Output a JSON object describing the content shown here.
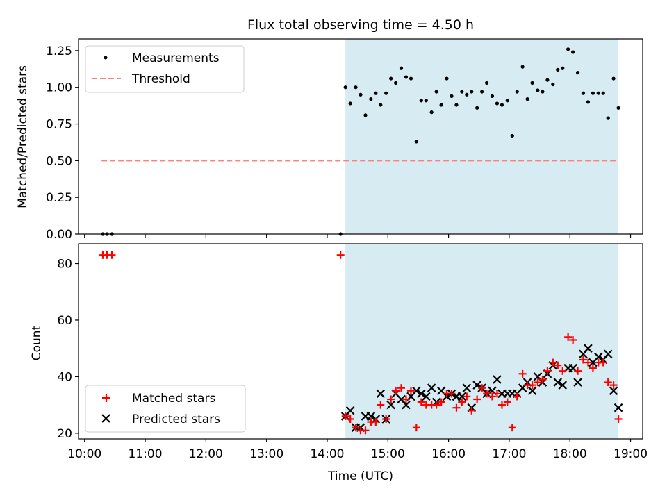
{
  "chart_data": [
    {
      "type": "scatter",
      "title": "Flux total observing time = 4.50 h",
      "ylabel": "Matched/Predicted stars",
      "ylim": [
        0,
        1.33
      ],
      "yticks": [
        "0.00",
        "0.25",
        "0.50",
        "0.75",
        "1.00",
        "1.25"
      ],
      "ytick_values": [
        0,
        0.25,
        0.5,
        0.75,
        1.0,
        1.25
      ],
      "shaded_region": {
        "x_start": 14.3,
        "x_end": 18.8,
        "color": "#add8e6"
      },
      "legend": {
        "placement": "top-left",
        "entries": [
          "Measurements",
          "Threshold"
        ]
      },
      "series": [
        {
          "name": "Measurements",
          "marker": "dot",
          "color": "#000000",
          "x": [
            10.3,
            10.37,
            10.45,
            14.22,
            14.3,
            14.38,
            14.47,
            14.55,
            14.63,
            14.72,
            14.8,
            14.88,
            14.97,
            15.05,
            15.13,
            15.22,
            15.3,
            15.38,
            15.47,
            15.55,
            15.63,
            15.72,
            15.8,
            15.88,
            15.97,
            16.05,
            16.13,
            16.22,
            16.3,
            16.38,
            16.47,
            16.55,
            16.63,
            16.72,
            16.8,
            16.88,
            16.97,
            17.05,
            17.13,
            17.22,
            17.3,
            17.38,
            17.47,
            17.55,
            17.63,
            17.72,
            17.8,
            17.88,
            17.97,
            18.05,
            18.13,
            18.22,
            18.3,
            18.38,
            18.47,
            18.55,
            18.63,
            18.72,
            18.8
          ],
          "y": [
            0,
            0,
            0,
            0,
            1.0,
            0.89,
            1.0,
            0.95,
            0.81,
            0.92,
            0.96,
            0.88,
            0.96,
            1.06,
            1.03,
            1.13,
            1.07,
            1.06,
            0.63,
            0.91,
            0.91,
            0.83,
            0.97,
            0.88,
            1.06,
            0.94,
            0.88,
            0.97,
            0.95,
            0.97,
            0.86,
            0.97,
            1.03,
            0.94,
            0.89,
            0.88,
            0.91,
            0.67,
            0.97,
            1.14,
            0.92,
            1.03,
            0.98,
            0.97,
            1.05,
            1.02,
            1.12,
            1.13,
            1.26,
            1.24,
            1.1,
            0.96,
            0.9,
            0.96,
            0.96,
            0.96,
            0.79,
            1.06,
            0.86
          ]
        },
        {
          "name": "Threshold",
          "style": "dashed",
          "color": "#ff7f7f",
          "x": [
            10.28,
            18.8
          ],
          "y": [
            0.5,
            0.5
          ]
        }
      ]
    },
    {
      "type": "scatter",
      "ylabel": "Count",
      "xlabel": "Time (UTC)",
      "ylim": [
        18,
        87
      ],
      "yticks": [
        "20",
        "40",
        "60",
        "80"
      ],
      "ytick_values": [
        20,
        40,
        60,
        80
      ],
      "xlim": [
        9.9,
        19.2
      ],
      "xticks": [
        "10:00",
        "11:00",
        "12:00",
        "13:00",
        "14:00",
        "15:00",
        "16:00",
        "17:00",
        "18:00",
        "19:00"
      ],
      "xtick_values": [
        10,
        11,
        12,
        13,
        14,
        15,
        16,
        17,
        18,
        19
      ],
      "shaded_region": {
        "x_start": 14.3,
        "x_end": 18.8,
        "color": "#add8e6"
      },
      "legend": {
        "placement": "bottom-left",
        "entries": [
          "Matched stars",
          "Predicted stars"
        ]
      },
      "series": [
        {
          "name": "Matched stars",
          "marker": "plus",
          "color": "#ff0000",
          "x": [
            10.3,
            10.37,
            10.45,
            14.22,
            14.3,
            14.38,
            14.47,
            14.55,
            14.63,
            14.72,
            14.8,
            14.88,
            14.97,
            15.05,
            15.13,
            15.22,
            15.3,
            15.38,
            15.47,
            15.55,
            15.63,
            15.72,
            15.8,
            15.88,
            15.97,
            16.05,
            16.13,
            16.22,
            16.3,
            16.38,
            16.47,
            16.55,
            16.63,
            16.72,
            16.8,
            16.88,
            16.97,
            17.05,
            17.13,
            17.22,
            17.3,
            17.38,
            17.47,
            17.55,
            17.63,
            17.72,
            17.8,
            17.88,
            17.97,
            18.05,
            18.13,
            18.22,
            18.3,
            18.38,
            18.47,
            18.55,
            18.63,
            18.72,
            18.8
          ],
          "y": [
            83,
            83,
            83,
            83,
            26,
            25,
            22,
            21,
            21,
            24,
            24,
            30,
            25,
            32,
            35,
            36,
            32,
            35,
            22,
            31,
            30,
            30,
            30,
            31,
            34,
            34,
            29,
            31,
            33,
            28,
            32,
            36,
            34,
            33,
            34,
            30,
            31,
            22,
            33,
            41,
            37,
            37,
            38,
            39,
            42,
            45,
            44,
            42,
            54,
            53,
            42,
            46,
            45,
            43,
            45,
            45,
            38,
            37,
            25
          ]
        },
        {
          "name": "Predicted stars",
          "marker": "x",
          "color": "#000000",
          "x": [
            14.3,
            14.38,
            14.47,
            14.55,
            14.63,
            14.72,
            14.8,
            14.88,
            14.97,
            15.05,
            15.13,
            15.22,
            15.3,
            15.38,
            15.47,
            15.55,
            15.63,
            15.72,
            15.8,
            15.88,
            15.97,
            16.05,
            16.13,
            16.22,
            16.3,
            16.38,
            16.47,
            16.55,
            16.63,
            16.72,
            16.8,
            16.88,
            16.97,
            17.05,
            17.13,
            17.22,
            17.3,
            17.38,
            17.47,
            17.55,
            17.63,
            17.72,
            17.8,
            17.88,
            17.97,
            18.05,
            18.13,
            18.22,
            18.3,
            18.38,
            18.47,
            18.55,
            18.63,
            18.72,
            18.8
          ],
          "y": [
            26,
            28,
            22,
            22,
            26,
            26,
            25,
            34,
            25,
            30,
            34,
            32,
            30,
            33,
            35,
            34,
            33,
            36,
            31,
            35,
            33,
            34,
            33,
            33,
            36,
            29,
            37,
            36,
            34,
            35,
            39,
            34,
            34,
            34,
            34,
            36,
            38,
            35,
            40,
            38,
            41,
            44,
            38,
            37,
            43,
            43,
            38,
            48,
            50,
            45,
            47,
            46,
            48,
            35,
            29
          ]
        }
      ]
    }
  ]
}
